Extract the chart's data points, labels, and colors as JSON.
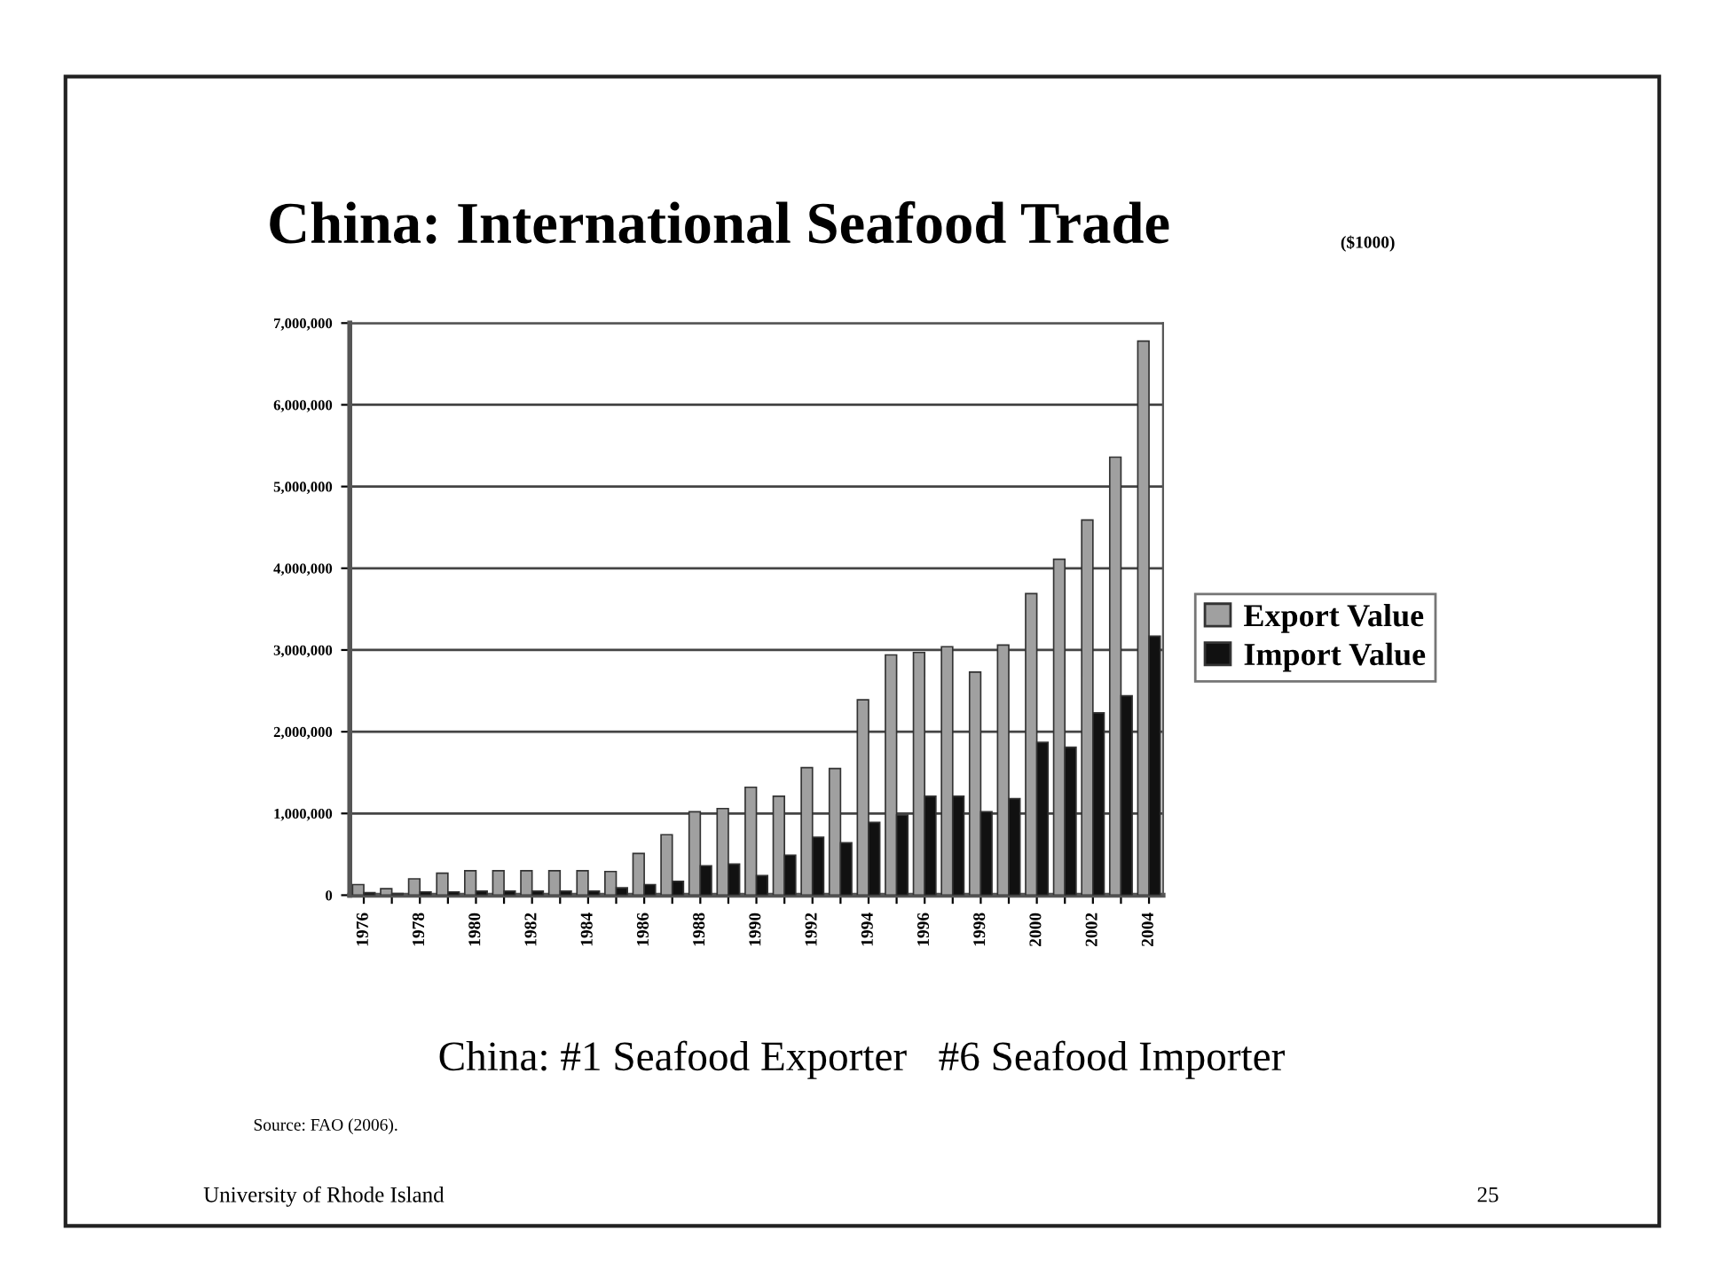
{
  "chart_data": {
    "type": "bar",
    "title": "China: International Seafood Trade",
    "subtitle": "($1000)",
    "categories": [
      "1976",
      null,
      "1978",
      null,
      "1980",
      null,
      "1982",
      null,
      "1984",
      null,
      "1986",
      null,
      "1988",
      null,
      "1990",
      null,
      "1992",
      null,
      "1994",
      null,
      "1996",
      null,
      "1998",
      null,
      "2000",
      null,
      "2002",
      null,
      "2004"
    ],
    "series": [
      {
        "name": "Export Value",
        "color": "#a0a0a0",
        "values": [
          130000,
          80000,
          200000,
          270000,
          300000,
          300000,
          300000,
          300000,
          300000,
          290000,
          510000,
          740000,
          1020000,
          1060000,
          1320000,
          1210000,
          1560000,
          1550000,
          2390000,
          2940000,
          2970000,
          3040000,
          2730000,
          3060000,
          3690000,
          4110000,
          4590000,
          5360000,
          6780000
        ]
      },
      {
        "name": "Import Value",
        "color": "#111111",
        "values": [
          30000,
          20000,
          40000,
          40000,
          50000,
          50000,
          50000,
          50000,
          50000,
          90000,
          130000,
          170000,
          360000,
          380000,
          240000,
          490000,
          710000,
          640000,
          890000,
          980000,
          1210000,
          1210000,
          1020000,
          1180000,
          1870000,
          1810000,
          2230000,
          2440000,
          3170000
        ]
      }
    ],
    "ylim": [
      0,
      7000000
    ],
    "yticks": [
      {
        "value": 0,
        "label": "0"
      },
      {
        "value": 1000000,
        "label": "1,000,000"
      },
      {
        "value": 2000000,
        "label": "2,000,000"
      },
      {
        "value": 3000000,
        "label": "3,000,000"
      },
      {
        "value": 4000000,
        "label": "4,000,000"
      },
      {
        "value": 5000000,
        "label": "5,000,000"
      },
      {
        "value": 6000000,
        "label": "6,000,000"
      },
      {
        "value": 7000000,
        "label": "7,000,000"
      }
    ],
    "grid": "y",
    "legend": "right",
    "annotations": [
      "China: #1 Seafood Exporter   #6 Seafood Importer",
      "Source: FAO (2006).",
      "University of Rhode Island",
      "25"
    ]
  }
}
